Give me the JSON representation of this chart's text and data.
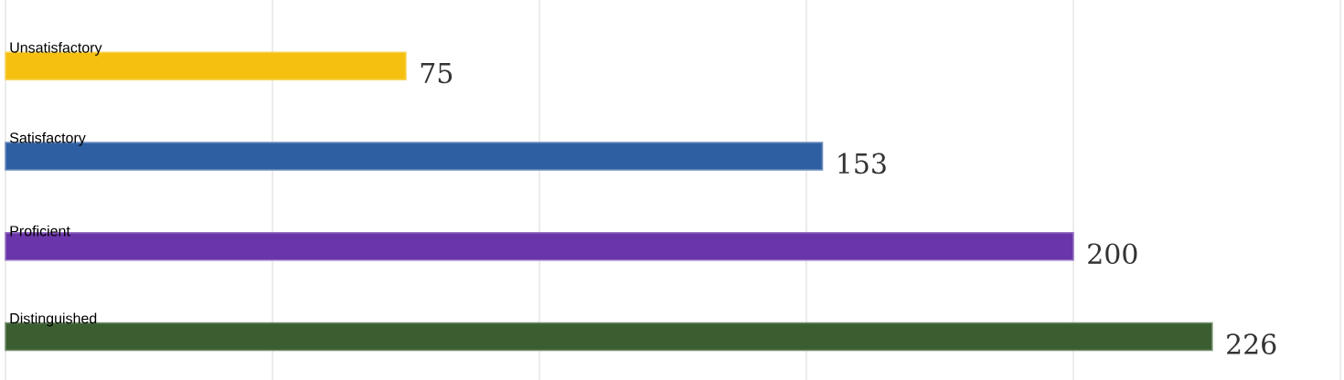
{
  "chart_data": {
    "type": "bar",
    "orientation": "horizontal",
    "categories": [
      "Unsatisfactory",
      "Satisfactory",
      "Proficient",
      "Distinguished"
    ],
    "values": [
      75,
      153,
      200,
      226
    ],
    "colors": [
      "#f5c010",
      "#2e5fa3",
      "#6a35a8",
      "#3a5e30"
    ],
    "xlim": [
      0,
      250
    ],
    "xticks": [
      {
        "value": 0,
        "label": null
      },
      {
        "value": 50,
        "label": null
      },
      {
        "value": 100,
        "label": null
      },
      {
        "value": 150,
        "label": null
      },
      {
        "value": 200,
        "label": null
      },
      {
        "value": 250,
        "label": null
      }
    ],
    "grid": "x",
    "data_labels": true
  }
}
